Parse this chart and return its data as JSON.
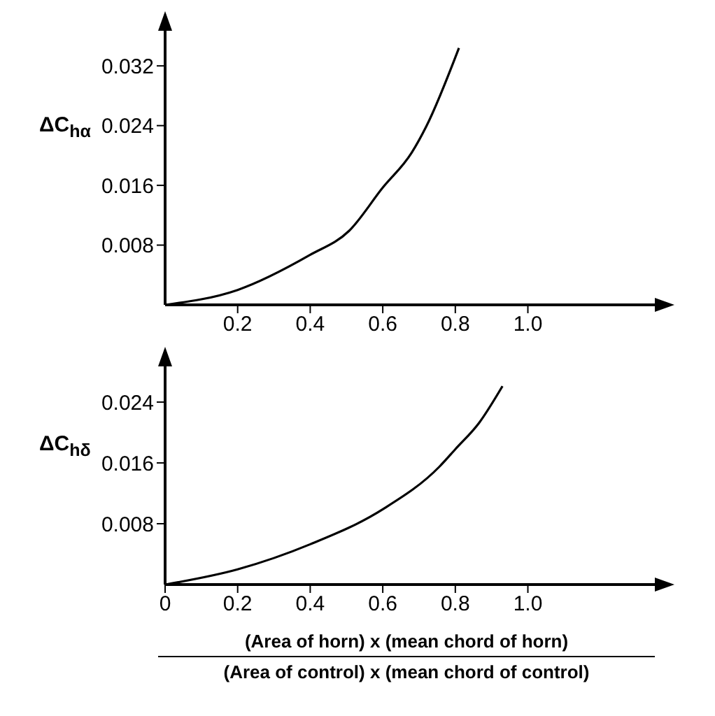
{
  "chart_data": [
    {
      "type": "line",
      "ylabel": "ΔC$_{hα}$",
      "x": [
        0,
        0.2,
        0.4,
        0.507,
        0.6,
        0.68,
        0.72,
        0.81
      ],
      "series": [
        {
          "color": "#000000",
          "values": [
            0,
            0.002,
            0.0067,
            0.0099,
            0.0157,
            0.0204,
            0.0239,
            0.0344
          ]
        }
      ],
      "xlim": [
        0,
        1.35
      ],
      "xticks": [
        0.2,
        0.4,
        0.6,
        0.8,
        {
          "value": 1.0,
          "label": "1.0"
        }
      ],
      "ylim": [
        0,
        0.0367
      ],
      "yticks": [
        0.008,
        0.016,
        0.024,
        0.032
      ]
    },
    {
      "type": "line",
      "ylabel": "ΔC$_{hδ}$",
      "xlabel": "(Area of horn) x (mean chord of horn)\n(Area of control) x (mean chord of control)",
      "x": [
        0,
        0.2,
        0.4,
        0.6,
        0.756,
        0.8,
        0.866,
        0.93
      ],
      "series": [
        {
          "color": "#000000",
          "values": [
            0,
            0.002,
            0.0053,
            0.0099,
            0.0155,
            0.0178,
            0.0213,
            0.0261
          ]
        }
      ],
      "xlim": [
        0,
        1.35
      ],
      "xticks": [
        0,
        0.2,
        0.4,
        0.6,
        0.8,
        {
          "value": 1.0,
          "label": "1.0"
        }
      ],
      "ylim": [
        0,
        0.0287
      ],
      "yticks": [
        0.008,
        0.016,
        0.024
      ]
    }
  ]
}
